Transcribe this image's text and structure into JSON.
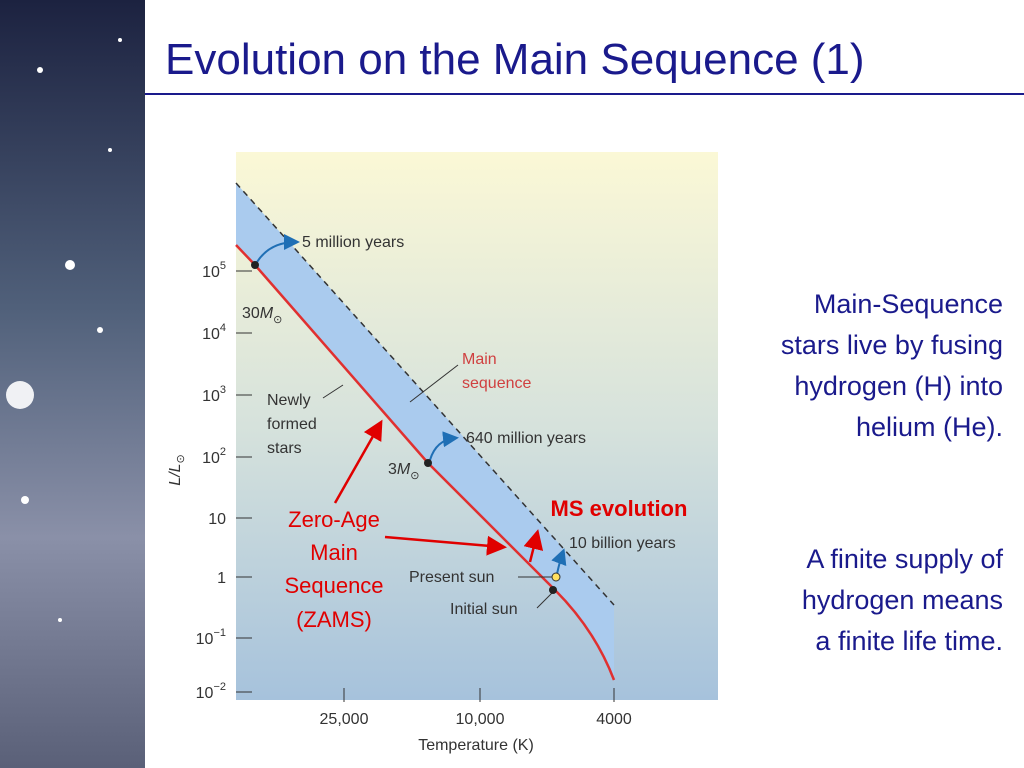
{
  "title": "Evolution on the Main Sequence (1)",
  "figure": {
    "y_axis_label": {
      "text": "L/L",
      "sub": "⊙"
    },
    "y_ticks": [
      {
        "base": "10",
        "exp": "5"
      },
      {
        "base": "10",
        "exp": "4"
      },
      {
        "base": "10",
        "exp": "3"
      },
      {
        "base": "10",
        "exp": "2"
      },
      "10",
      "1",
      {
        "base": "10",
        "exp": "−1"
      },
      {
        "base": "10",
        "exp": "−2"
      }
    ],
    "x_ticks": [
      "25,000",
      "10,000",
      "4000"
    ],
    "x_axis_label": "Temperature (K)",
    "ages": [
      "5 million years",
      "640 million years",
      "10 billion years"
    ],
    "masses": [
      {
        "number": "30",
        "symbol": "M",
        "sub": "⊙"
      },
      {
        "number": "3",
        "symbol": "M",
        "sub": "⊙"
      }
    ],
    "labels": {
      "newly_formed": [
        "Newly",
        "formed",
        "stars"
      ],
      "main_sequence": [
        "Main",
        "sequence"
      ],
      "present_sun": "Present sun",
      "initial_sun": "Initial sun"
    }
  },
  "callouts": {
    "zams": [
      "Zero-Age",
      "Main",
      "Sequence",
      "(ZAMS)"
    ],
    "ms_evolution": "MS evolution"
  },
  "text": {
    "paragraphs": [
      [
        "Main-Sequence",
        "stars live by fusing",
        "hydrogen (H) into",
        "helium (He)."
      ],
      [
        "A finite supply of",
        "hydrogen means",
        "a finite life time."
      ]
    ]
  }
}
